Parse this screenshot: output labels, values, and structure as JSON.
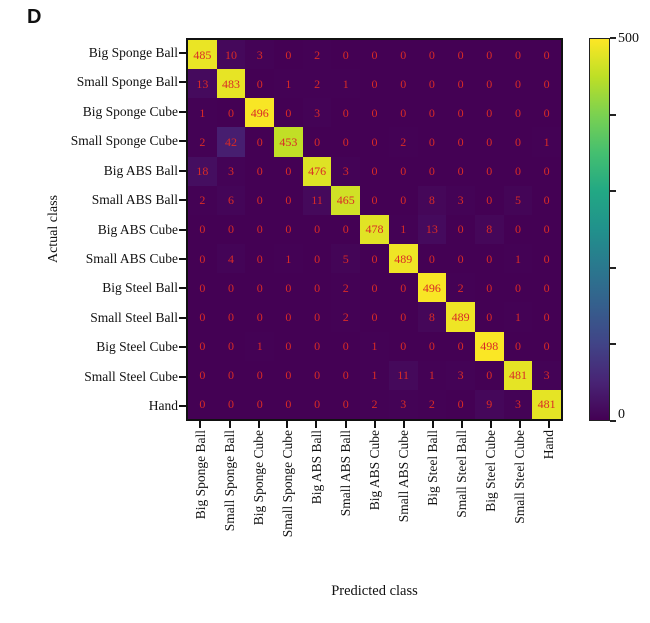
{
  "panel_label": "D",
  "chart_data": {
    "type": "heatmap",
    "title": "",
    "xlabel": "Predicted class",
    "ylabel": "Actual class",
    "categories": [
      "Big Sponge Ball",
      "Small Sponge Ball",
      "Big Sponge Cube",
      "Small Sponge Cube",
      "Big ABS Ball",
      "Small ABS Ball",
      "Big ABS Cube",
      "Small ABS Cube",
      "Big Steel Ball",
      "Small Steel Ball",
      "Big Steel Cube",
      "Small Steel Cube",
      "Hand"
    ],
    "matrix": [
      [
        485,
        10,
        3,
        0,
        2,
        0,
        0,
        0,
        0,
        0,
        0,
        0,
        0
      ],
      [
        13,
        483,
        0,
        1,
        2,
        1,
        0,
        0,
        0,
        0,
        0,
        0,
        0
      ],
      [
        1,
        0,
        496,
        0,
        3,
        0,
        0,
        0,
        0,
        0,
        0,
        0,
        0
      ],
      [
        2,
        42,
        0,
        453,
        0,
        0,
        0,
        2,
        0,
        0,
        0,
        0,
        1
      ],
      [
        18,
        3,
        0,
        0,
        476,
        3,
        0,
        0,
        0,
        0,
        0,
        0,
        0
      ],
      [
        2,
        6,
        0,
        0,
        11,
        465,
        0,
        0,
        8,
        3,
        0,
        5,
        0
      ],
      [
        0,
        0,
        0,
        0,
        0,
        0,
        478,
        1,
        13,
        0,
        8,
        0,
        0
      ],
      [
        0,
        4,
        0,
        1,
        0,
        5,
        0,
        489,
        0,
        0,
        0,
        1,
        0
      ],
      [
        0,
        0,
        0,
        0,
        0,
        2,
        0,
        0,
        496,
        2,
        0,
        0,
        0
      ],
      [
        0,
        0,
        0,
        0,
        0,
        2,
        0,
        0,
        8,
        489,
        0,
        1,
        0
      ],
      [
        0,
        0,
        1,
        0,
        0,
        0,
        1,
        0,
        0,
        0,
        498,
        0,
        0
      ],
      [
        0,
        0,
        0,
        0,
        0,
        0,
        1,
        11,
        1,
        3,
        0,
        481,
        3
      ],
      [
        0,
        0,
        0,
        0,
        0,
        0,
        2,
        3,
        2,
        0,
        9,
        3,
        481
      ]
    ],
    "value_label_color": "#d92b26",
    "grid": false,
    "legend_position": "right",
    "colorbar": {
      "min": 0,
      "max": 500,
      "min_label": "0",
      "max_label": "500",
      "tick_values": [
        0,
        100,
        200,
        300,
        400,
        500
      ],
      "colormap": "viridis",
      "colormap_stops": [
        "#440154",
        "#482475",
        "#414487",
        "#355f8d",
        "#2a788e",
        "#21918c",
        "#22a884",
        "#44bf70",
        "#7ad151",
        "#bddf26",
        "#fde725"
      ]
    }
  }
}
